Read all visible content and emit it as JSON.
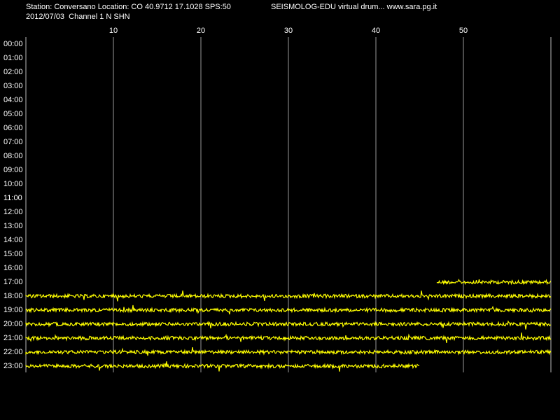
{
  "chart_data": {
    "type": "helicorder",
    "header_left": "Station: Conversano Location: CO 40.9712 17.1028 SPS:50",
    "header_right": "SEISMOLOG-EDU virtual drum... www.sara.pg.it",
    "subheader": "2012/07/03  Channel 1 N SHN",
    "categories": [
      "00:00",
      "01:00",
      "02:00",
      "03:00",
      "04:00",
      "05:00",
      "06:00",
      "07:00",
      "08:00",
      "09:00",
      "10:00",
      "11:00",
      "12:00",
      "13:00",
      "14:00",
      "15:00",
      "16:00",
      "17:00",
      "18:00",
      "19:00",
      "20:00",
      "21:00",
      "22:00",
      "23:00"
    ],
    "trace_start": [
      null,
      null,
      null,
      null,
      null,
      null,
      null,
      null,
      null,
      null,
      null,
      null,
      null,
      null,
      null,
      null,
      null,
      47,
      0,
      0,
      0,
      0,
      0,
      0
    ],
    "trace_end": [
      null,
      null,
      null,
      null,
      null,
      null,
      null,
      null,
      null,
      null,
      null,
      null,
      null,
      null,
      null,
      null,
      null,
      60,
      60,
      60,
      60,
      60,
      60,
      45
    ],
    "color": "#ffff00",
    "xlim": [
      0,
      60
    ],
    "xticks": [
      10,
      20,
      30,
      40,
      50
    ],
    "grid": true
  }
}
